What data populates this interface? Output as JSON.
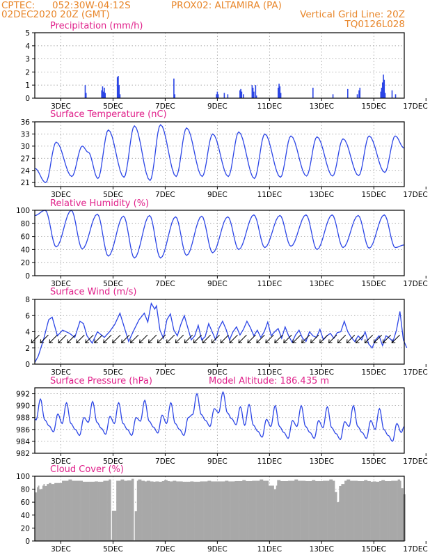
{
  "header": {
    "line1_left": "CPTEC:",
    "line1_coords": "052:30W-04:12S",
    "line1_station": "PROX02: ALTAMIRA (PA)",
    "line2_date": "02DEC2020 20Z (GMT)",
    "line2_grid": "Vertical Grid Line: 20Z",
    "line3_code": "TQ0126L028"
  },
  "colors": {
    "header": "#e8862a",
    "panel_title": "#e0208a",
    "series": "#2b45e6",
    "cloud": "#a8a8a8"
  },
  "x_axis": {
    "start": "02DEC2020 20Z",
    "end": "17DEC2020 00Z",
    "labels": [
      "3DEC",
      "5DEC",
      "7DEC",
      "9DEC",
      "11DEC",
      "13DEC",
      "15DEC",
      "17DEC"
    ]
  },
  "chart_data": [
    {
      "id": "precip",
      "type": "bar",
      "title": "Precipitation (mm/h)",
      "ylim": [
        0,
        5
      ],
      "yticks": [
        "0",
        "1",
        "2",
        "3",
        "4",
        "5"
      ],
      "points": [
        [
          2.9,
          1.0
        ],
        [
          2.95,
          0.4
        ],
        [
          3.85,
          0.6
        ],
        [
          3.9,
          0.9
        ],
        [
          3.95,
          0.5
        ],
        [
          4.0,
          0.8
        ],
        [
          4.05,
          0.4
        ],
        [
          4.75,
          1.6
        ],
        [
          4.8,
          1.7
        ],
        [
          4.85,
          1.0
        ],
        [
          4.9,
          0.3
        ],
        [
          8.0,
          1.5
        ],
        [
          8.05,
          0.3
        ],
        [
          10.45,
          0.3
        ],
        [
          10.5,
          0.5
        ],
        [
          10.55,
          0.3
        ],
        [
          10.9,
          0.4
        ],
        [
          11.1,
          0.3
        ],
        [
          11.8,
          0.6
        ],
        [
          11.85,
          0.7
        ],
        [
          11.9,
          0.5
        ],
        [
          12.0,
          0.3
        ],
        [
          12.5,
          1.0
        ],
        [
          12.55,
          0.8
        ],
        [
          12.6,
          0.5
        ],
        [
          12.7,
          1.0
        ],
        [
          12.75,
          0.2
        ],
        [
          14.0,
          0.8
        ],
        [
          14.05,
          1.1
        ],
        [
          14.1,
          0.9
        ],
        [
          14.15,
          0.4
        ],
        [
          16.0,
          0.8
        ],
        [
          17.15,
          0.3
        ],
        [
          18.0,
          0.7
        ],
        [
          18.55,
          0.3
        ],
        [
          18.65,
          0.6
        ],
        [
          18.7,
          0.8
        ],
        [
          19.9,
          0.5
        ],
        [
          19.95,
          0.8
        ],
        [
          20.0,
          1.2
        ],
        [
          20.05,
          1.8
        ],
        [
          20.1,
          1.4
        ],
        [
          20.15,
          0.4
        ],
        [
          20.55,
          0.6
        ],
        [
          20.75,
          0.3
        ]
      ]
    },
    {
      "id": "temperature",
      "type": "line",
      "title": "Surface Temperature (nC)",
      "ylim": [
        20,
        36
      ],
      "yticks": [
        "21",
        "24",
        "27",
        "30",
        "33",
        "36"
      ],
      "minima": [
        21.0,
        22.5,
        22.0,
        22.3,
        21.5,
        22.5,
        22.5,
        22.5,
        22.0,
        22.3,
        22.6,
        22.6,
        22.7,
        23.5,
        22.8
      ],
      "maxima": [
        31.0,
        30.0,
        34.0,
        35.0,
        35.3,
        34.5,
        33.0,
        33.5,
        33.0,
        32.5,
        32.3,
        31.8,
        32.5,
        32.5,
        31.2
      ],
      "shoulders": [
        0,
        1,
        0,
        0,
        0,
        0,
        0,
        0,
        0,
        0,
        0,
        0,
        0,
        0,
        0
      ]
    },
    {
      "id": "humidity",
      "type": "line",
      "title": "Relative Humidity (%)",
      "ylim": [
        0,
        100
      ],
      "yticks": [
        "0",
        "20",
        "40",
        "60",
        "80",
        "100"
      ],
      "maxima": [
        100,
        100,
        94,
        91,
        92,
        90,
        91,
        90,
        93,
        92,
        93,
        93,
        92,
        93,
        92
      ],
      "minima": [
        44,
        41,
        30,
        27,
        27,
        31,
        35,
        40,
        43,
        45,
        40,
        43,
        42,
        43,
        41
      ]
    },
    {
      "id": "wind",
      "type": "line",
      "title": "Surface Wind (m/s)",
      "ylim": [
        0,
        8
      ],
      "yticks": [
        "0",
        "2",
        "4",
        "6",
        "8"
      ],
      "points": [
        [
          0,
          0.2
        ],
        [
          0.2,
          1
        ],
        [
          0.5,
          3
        ],
        [
          0.8,
          5.5
        ],
        [
          1,
          5.8
        ],
        [
          1.3,
          3.5
        ],
        [
          1.6,
          4.2
        ],
        [
          2,
          3.8
        ],
        [
          2.3,
          3.3
        ],
        [
          2.6,
          5.3
        ],
        [
          2.8,
          5
        ],
        [
          3,
          3.5
        ],
        [
          3.3,
          2.6
        ],
        [
          3.6,
          4
        ],
        [
          4,
          3.3
        ],
        [
          4.3,
          4
        ],
        [
          4.6,
          4.9
        ],
        [
          4.9,
          6.3
        ],
        [
          5.2,
          4.2
        ],
        [
          5.4,
          2.8
        ],
        [
          5.7,
          4.2
        ],
        [
          6.0,
          5.5
        ],
        [
          6.3,
          6.3
        ],
        [
          6.5,
          5.2
        ],
        [
          6.7,
          7.5
        ],
        [
          6.9,
          6.8
        ],
        [
          7.0,
          7.2
        ],
        [
          7.2,
          4.2
        ],
        [
          7.4,
          3.2
        ],
        [
          7.6,
          5.5
        ],
        [
          7.8,
          6.2
        ],
        [
          8.0,
          4.2
        ],
        [
          8.2,
          3.5
        ],
        [
          8.4,
          4.9
        ],
        [
          8.6,
          6.0
        ],
        [
          8.8,
          4.5
        ],
        [
          9.0,
          3.0
        ],
        [
          9.2,
          3.5
        ],
        [
          9.4,
          4.8
        ],
        [
          9.6,
          3.0
        ],
        [
          9.8,
          3.4
        ],
        [
          10.0,
          5.0
        ],
        [
          10.2,
          4.0
        ],
        [
          10.4,
          3.0
        ],
        [
          10.6,
          4.5
        ],
        [
          10.8,
          5.3
        ],
        [
          11.0,
          4.3
        ],
        [
          11.2,
          3.0
        ],
        [
          11.4,
          4.0
        ],
        [
          11.6,
          4.6
        ],
        [
          11.8,
          3.6
        ],
        [
          12.0,
          4.3
        ],
        [
          12.2,
          5.3
        ],
        [
          12.4,
          4.5
        ],
        [
          12.6,
          3.5
        ],
        [
          12.8,
          4.2
        ],
        [
          13.0,
          3.3
        ],
        [
          13.2,
          4.0
        ],
        [
          13.4,
          5.2
        ],
        [
          13.6,
          3.5
        ],
        [
          13.8,
          4.0
        ],
        [
          14.0,
          4.4
        ],
        [
          14.2,
          3.2
        ],
        [
          14.4,
          4.6
        ],
        [
          14.6,
          3.5
        ],
        [
          14.8,
          2.7
        ],
        [
          15.0,
          3.6
        ],
        [
          15.2,
          4.2
        ],
        [
          15.4,
          3.2
        ],
        [
          15.6,
          2.8
        ],
        [
          15.8,
          4.0
        ],
        [
          16.0,
          3.5
        ],
        [
          16.2,
          3.3
        ],
        [
          16.4,
          4.3
        ],
        [
          16.6,
          3.0
        ],
        [
          16.8,
          3.5
        ],
        [
          17.0,
          3.8
        ],
        [
          17.2,
          3.2
        ],
        [
          17.4,
          3.9
        ],
        [
          17.6,
          4.0
        ],
        [
          17.8,
          5.3
        ],
        [
          18.0,
          4.0
        ],
        [
          18.2,
          3.3
        ],
        [
          18.4,
          2.8
        ],
        [
          18.6,
          3.5
        ],
        [
          18.8,
          3.0
        ],
        [
          19.0,
          4.0
        ],
        [
          19.2,
          2.5
        ],
        [
          19.4,
          2.0
        ],
        [
          19.6,
          3.0
        ],
        [
          19.8,
          3.5
        ],
        [
          20.0,
          2.3
        ],
        [
          20.2,
          3.5
        ],
        [
          20.4,
          3.2
        ],
        [
          20.6,
          2.8
        ],
        [
          20.8,
          4.2
        ],
        [
          21.0,
          6.5
        ],
        [
          21.2,
          3.0
        ],
        [
          21.4,
          2.0
        ]
      ],
      "arrows_direction_deg": [
        45,
        45,
        45,
        45,
        45,
        45,
        45,
        45,
        45,
        45,
        45,
        45,
        45,
        45,
        45,
        45,
        45,
        45,
        45,
        45,
        45,
        45,
        45,
        45,
        45,
        45,
        45,
        45,
        45,
        45,
        45,
        45,
        45,
        45,
        45,
        45,
        45,
        45,
        45,
        45,
        45
      ]
    },
    {
      "id": "pressure",
      "type": "line",
      "title": "Surface Pressure (hPa)",
      "annotation": "Model Altitude: 186.435 m",
      "ylim": [
        982,
        993
      ],
      "yticks": [
        "982",
        "984",
        "986",
        "988",
        "990",
        "992"
      ],
      "cycle": [
        987.0,
        990.5,
        987.0,
        986.0,
        985.0,
        988.0
      ],
      "daily_offset": [
        0.6,
        0,
        0.2,
        0,
        0.4,
        0,
        1.5,
        1.8,
        -0.3,
        -0.5,
        -0.5,
        -0.7,
        -0.5,
        -1.0,
        -1.5
      ]
    },
    {
      "id": "cloud",
      "type": "bar",
      "title": "Cloud Cover (%)",
      "ylim": [
        0,
        100
      ],
      "yticks": [
        "0",
        "20",
        "40",
        "60",
        "80",
        "100"
      ],
      "base_level": 91,
      "dips": [
        [
          0.02,
          75
        ],
        [
          0.3,
          80
        ],
        [
          0.6,
          85
        ],
        [
          1.0,
          88
        ],
        [
          2.0,
          95
        ],
        [
          3.5,
          92
        ],
        [
          4.3,
          95
        ],
        [
          4.35,
          2
        ],
        [
          5.0,
          95
        ],
        [
          5.6,
          96
        ],
        [
          5.65,
          1
        ],
        [
          6.0,
          95
        ],
        [
          6.5,
          93
        ],
        [
          7.0,
          92
        ],
        [
          7.5,
          94
        ],
        [
          8.0,
          93
        ],
        [
          9.0,
          92
        ],
        [
          10.0,
          93
        ],
        [
          11.0,
          93
        ],
        [
          12.0,
          94
        ],
        [
          13.0,
          95
        ],
        [
          13.8,
          80
        ],
        [
          14.0,
          94
        ],
        [
          15.0,
          95
        ],
        [
          16.0,
          94
        ],
        [
          17.0,
          95
        ],
        [
          17.4,
          60
        ],
        [
          17.5,
          85
        ],
        [
          18.0,
          95
        ],
        [
          19.0,
          94
        ],
        [
          19.5,
          92
        ],
        [
          20.0,
          94
        ],
        [
          20.9,
          95
        ],
        [
          21.2,
          72
        ],
        [
          21.4,
          95
        ]
      ]
    }
  ]
}
